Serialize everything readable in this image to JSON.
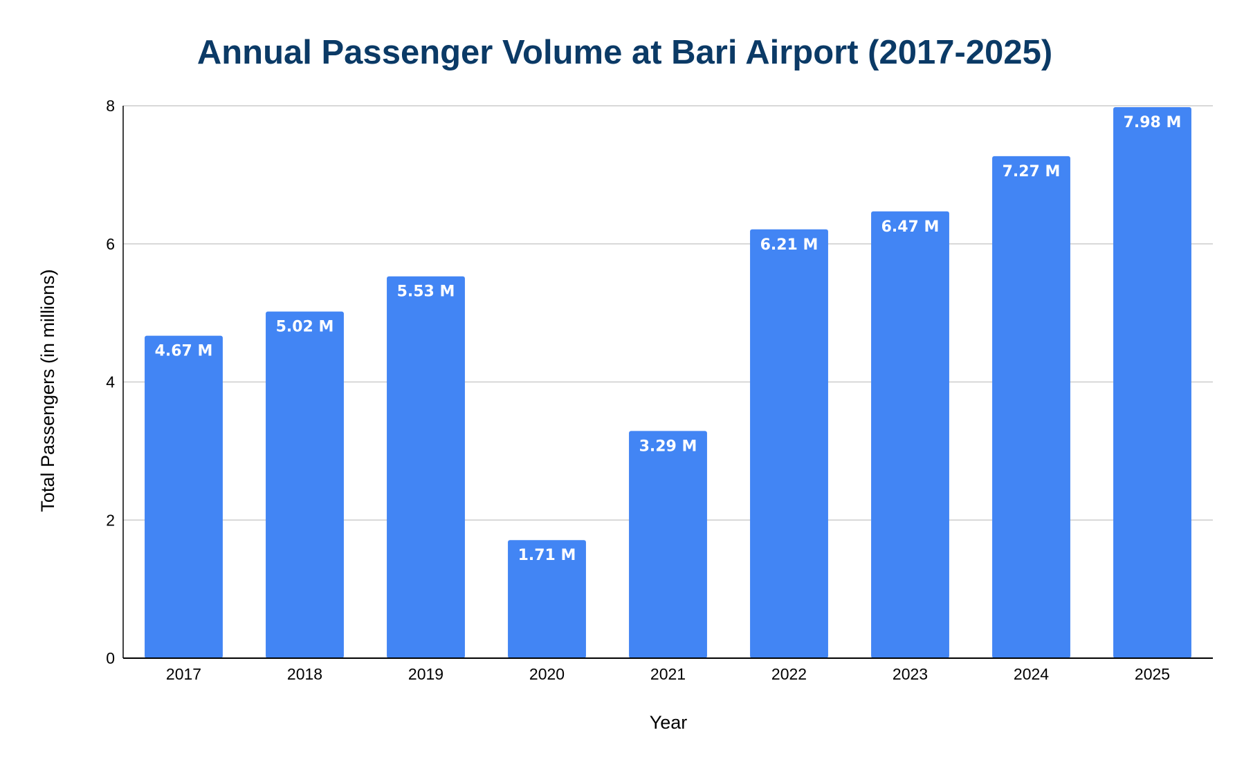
{
  "chart_data": {
    "type": "bar",
    "title": "Annual Passenger Volume at Bari Airport (2017-2025)",
    "xlabel": "Year",
    "ylabel": "Total Passengers (in millions)",
    "categories": [
      "2017",
      "2018",
      "2019",
      "2020",
      "2021",
      "2022",
      "2023",
      "2024",
      "2025"
    ],
    "values": [
      4.67,
      5.02,
      5.53,
      1.71,
      3.29,
      6.21,
      6.47,
      7.27,
      7.98
    ],
    "data_labels": [
      "4.67 M",
      "5.02 M",
      "5.53 M",
      "1.71 M",
      "3.29 M",
      "6.21 M",
      "6.47 M",
      "7.27 M",
      "7.98 M"
    ],
    "ylim": [
      0,
      8
    ],
    "yticks": [
      0,
      2,
      4,
      6,
      8
    ],
    "grid": true,
    "legend": "none",
    "colors": {
      "bar": "#4285f4",
      "title": "#0b3a66",
      "grid": "#cccccc",
      "axis": "#000000",
      "data_label": "#ffffff"
    }
  }
}
